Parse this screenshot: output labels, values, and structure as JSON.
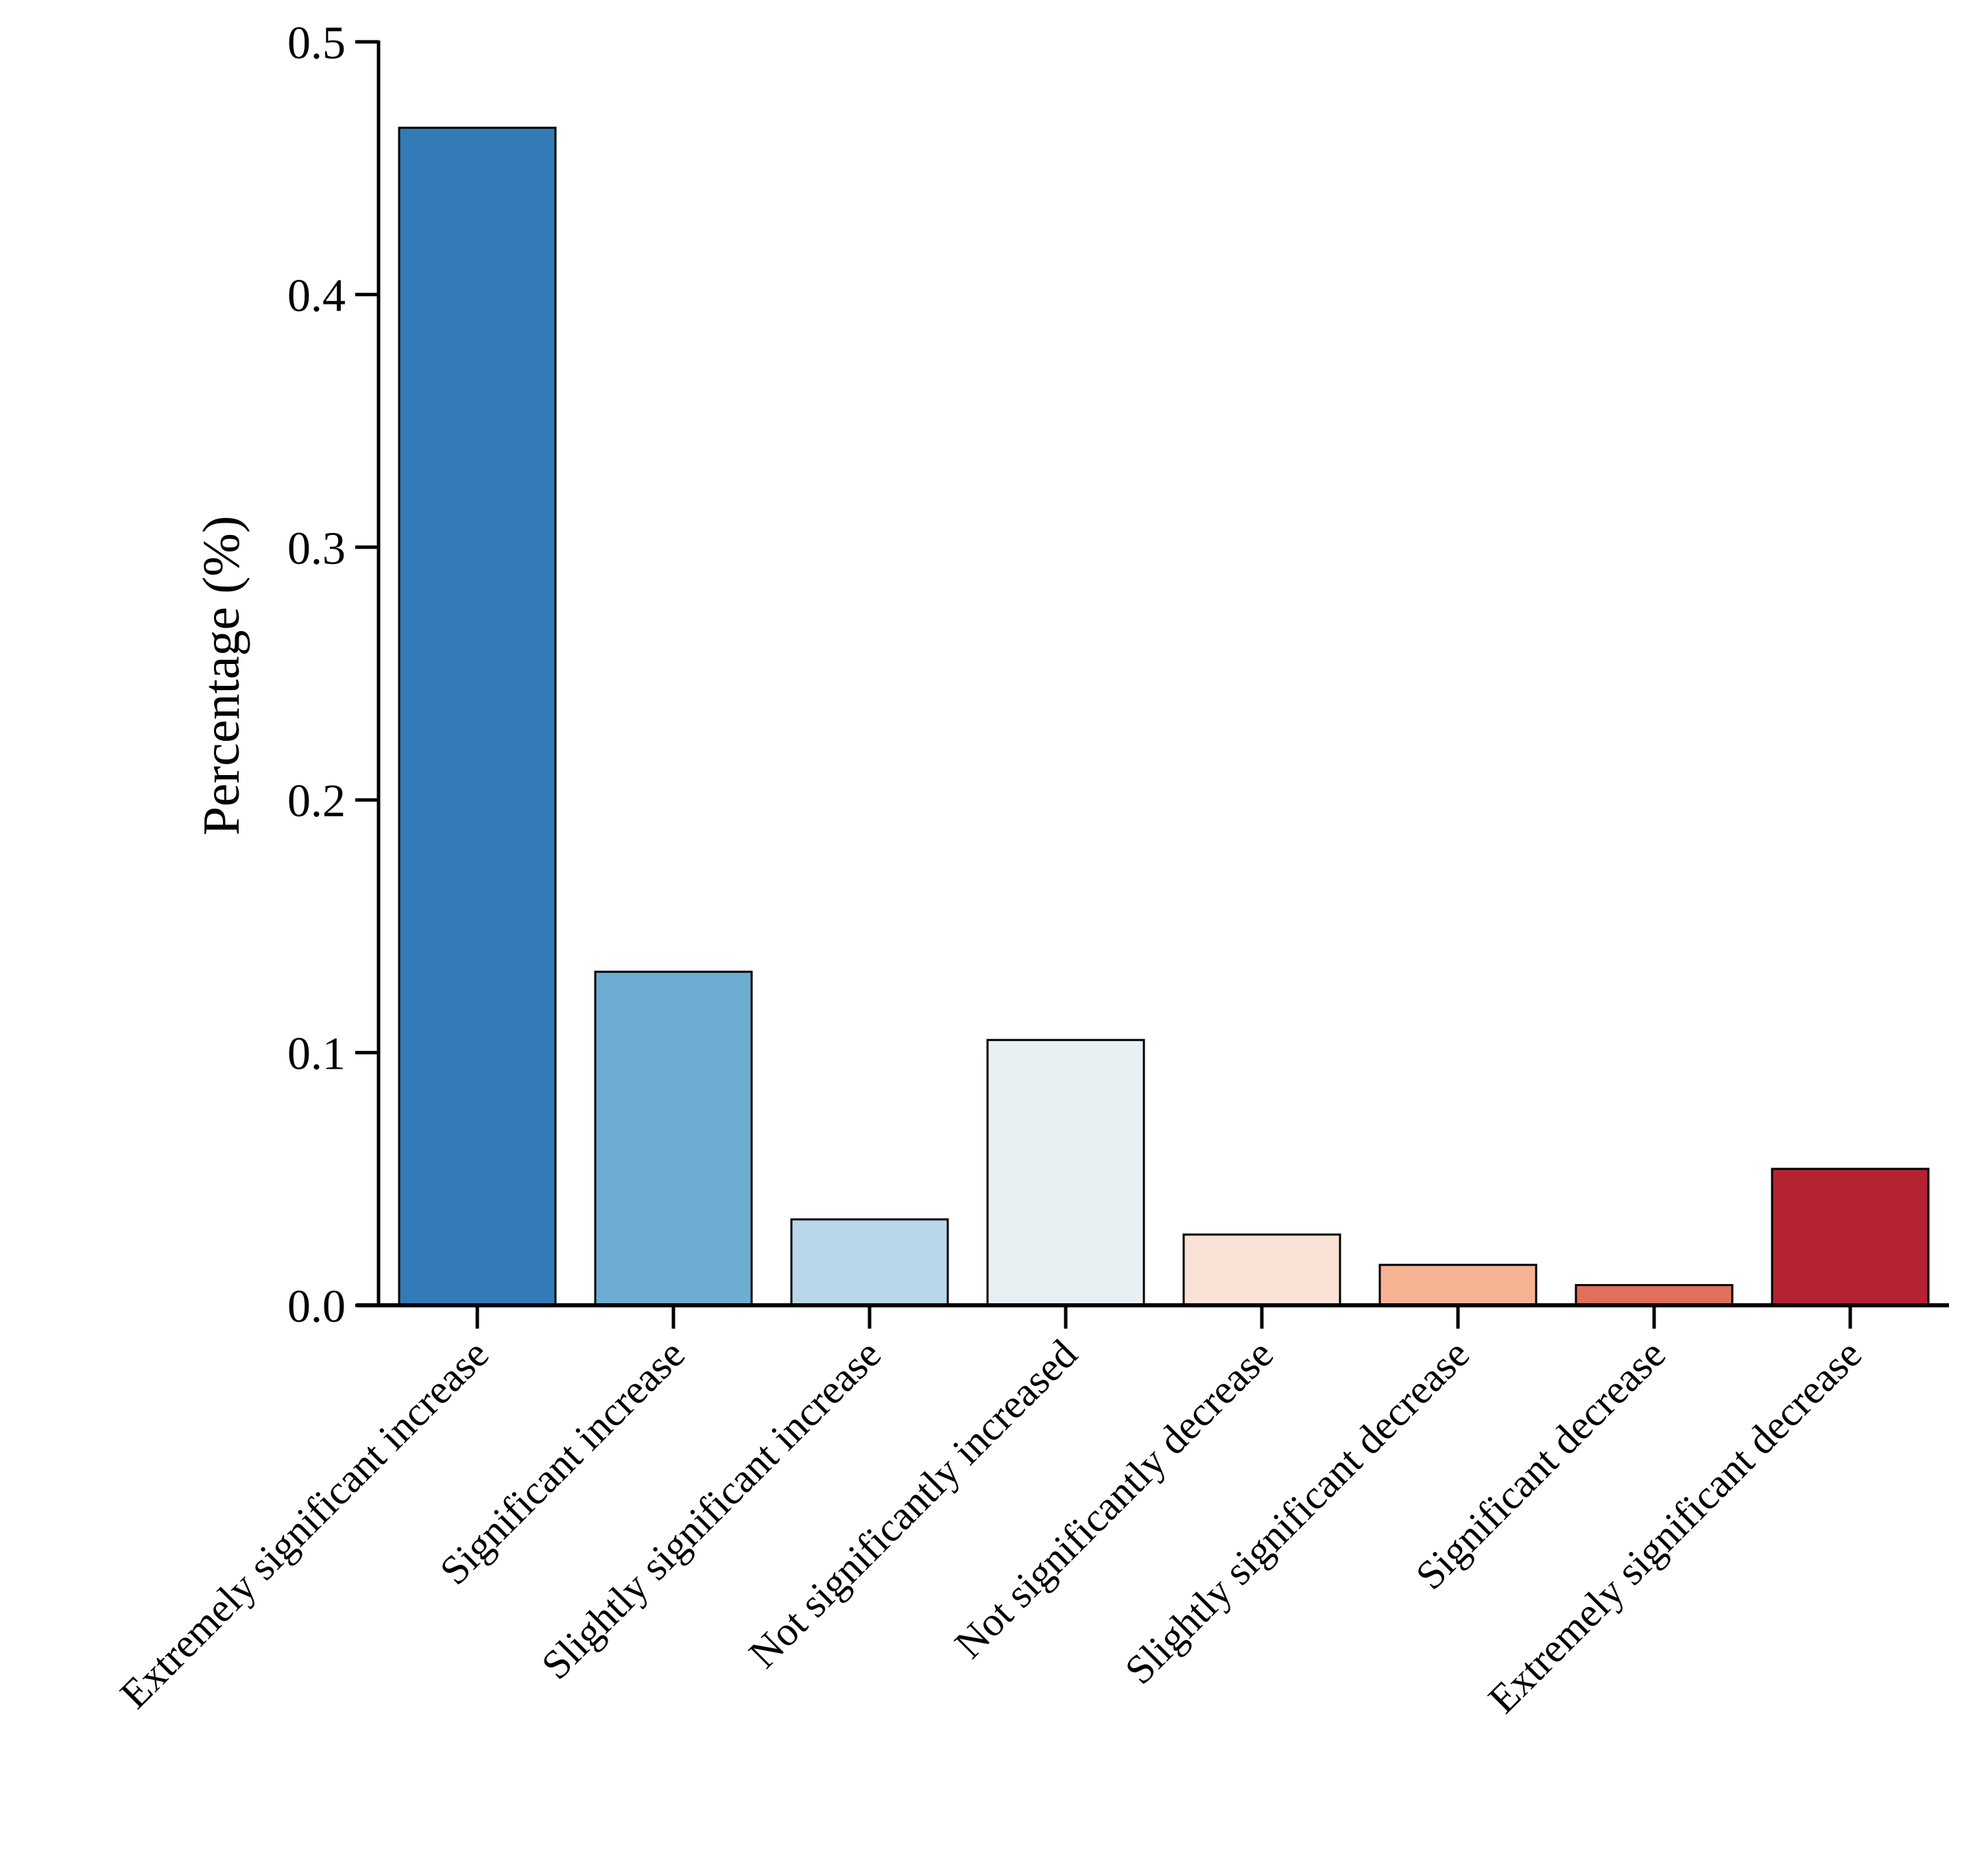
{
  "chart_data": {
    "type": "bar",
    "title": "",
    "xlabel": "",
    "ylabel": "Percentage (%)",
    "ylim": [
      0,
      0.5
    ],
    "yticks": [
      "0.0",
      "0.1",
      "0.2",
      "0.3",
      "0.4",
      "0.5"
    ],
    "grid": false,
    "categories": [
      "Extremely significant increase",
      "Significant increase",
      "Slightly significant increase",
      "Not significantly increased",
      "Not significantly decrease",
      "Slightly significant decrease",
      "Significant decrease",
      "Extremely significant decrease"
    ],
    "values": [
      0.466,
      0.132,
      0.034,
      0.105,
      0.028,
      0.016,
      0.008,
      0.054
    ],
    "colors": [
      "#327bb6",
      "#6eadd2",
      "#b8d8e9",
      "#e8f0f4",
      "#fbe2d6",
      "#f6b394",
      "#e0705a",
      "#b52231"
    ]
  }
}
